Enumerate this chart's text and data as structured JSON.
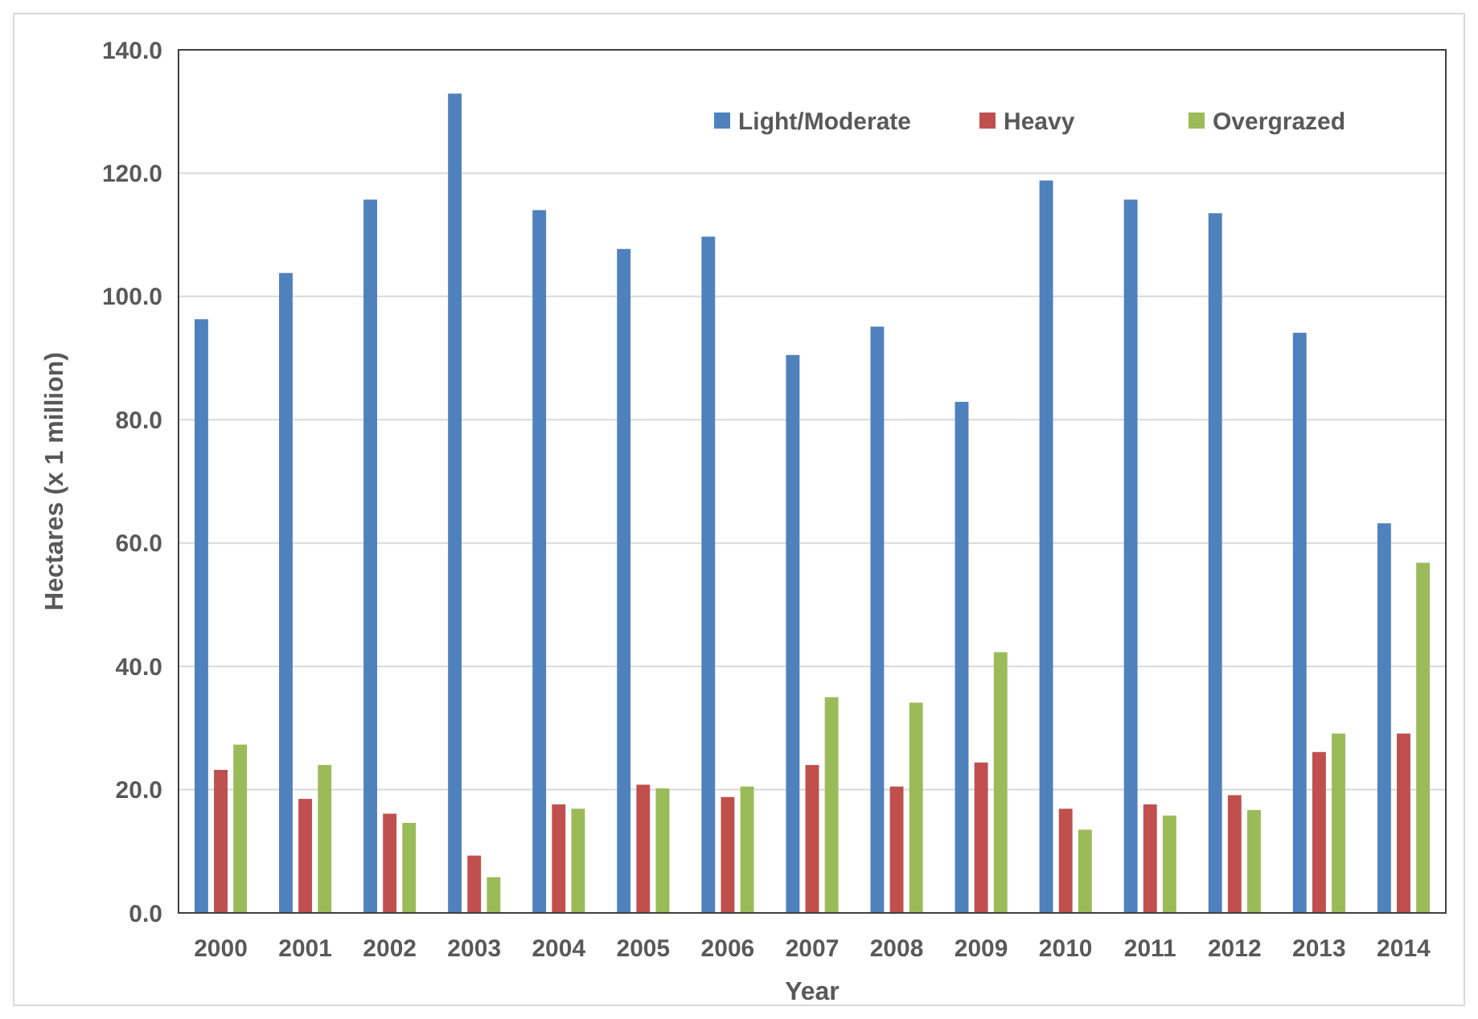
{
  "chart_data": {
    "type": "bar",
    "xlabel": "Year",
    "ylabel": "Hectares (x 1 million)",
    "categories": [
      "2000",
      "2001",
      "2002",
      "2003",
      "2004",
      "2005",
      "2006",
      "2007",
      "2008",
      "2009",
      "2010",
      "2011",
      "2012",
      "2013",
      "2014"
    ],
    "series": [
      {
        "name": "Light/Moderate",
        "color": "#4f81bd",
        "values": [
          96.3,
          103.8,
          115.7,
          132.9,
          114.0,
          107.7,
          109.7,
          90.5,
          95.1,
          82.9,
          118.8,
          115.7,
          113.5,
          94.1,
          63.2
        ]
      },
      {
        "name": "Heavy",
        "color": "#c0504d",
        "values": [
          23.2,
          18.5,
          16.1,
          9.3,
          17.6,
          20.8,
          18.8,
          24.0,
          20.5,
          24.4,
          16.9,
          17.6,
          19.1,
          26.1,
          29.1
        ]
      },
      {
        "name": "Overgrazed",
        "color": "#9bbb59",
        "values": [
          27.3,
          24.0,
          14.6,
          5.8,
          16.9,
          20.2,
          20.5,
          35.0,
          34.1,
          42.3,
          13.5,
          15.8,
          16.7,
          29.1,
          56.8
        ]
      }
    ],
    "ylim": [
      0,
      140
    ],
    "yticks": [
      {
        "value": 0,
        "label": "0.0"
      },
      {
        "value": 20,
        "label": "20.0"
      },
      {
        "value": 40,
        "label": "40.0"
      },
      {
        "value": 60,
        "label": "60.0"
      },
      {
        "value": 80,
        "label": "80.0"
      },
      {
        "value": 100,
        "label": "100.0"
      },
      {
        "value": 120,
        "label": "120.0"
      },
      {
        "value": 140,
        "label": "140.0"
      }
    ],
    "grid": "y",
    "legend": "top right"
  }
}
